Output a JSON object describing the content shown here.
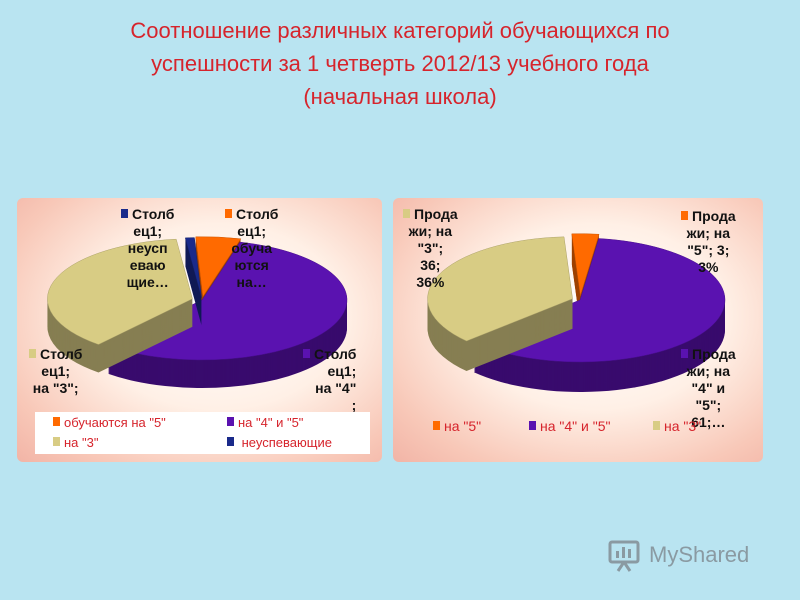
{
  "slide": {
    "title_lines": [
      "Соотношение различных категорий обучающихся по",
      "успешности за 1 четверть 2012/13 учебного года",
      "(начальная школа)"
    ],
    "brand": "MyShared"
  },
  "colors": {
    "title": "#d6242c",
    "background": "#b9e4f1",
    "excellent": "#ff6a00",
    "good": "#5a12b0",
    "satisfactory": "#d8cc84",
    "failing": "#1a2a8a"
  },
  "chart_data": [
    {
      "type": "pie",
      "title": "",
      "slices": [
        {
          "key": "excellent",
          "legend": "обучаются на \"5\"",
          "label": [
            "Столб",
            "ец1;",
            "обуча",
            "ются",
            "на…"
          ],
          "value": 5
        },
        {
          "key": "good",
          "legend": "на \"4\" и \"5\"",
          "label": [
            "Столб",
            "ец1;",
            "на \"4\"",
            ";",
            "…"
          ],
          "value": 57
        },
        {
          "key": "satisfactory",
          "legend": "на \"3\"",
          "label": [
            "Столб",
            "ец1;",
            "на \"3\";"
          ],
          "value": 37
        },
        {
          "key": "failing",
          "legend": "неуспевающие",
          "label": [
            "Столб",
            "ец1;",
            "неусп",
            "еваю",
            "щие…"
          ],
          "value": 1
        }
      ],
      "legend_position": "bottom"
    },
    {
      "type": "pie",
      "title": "",
      "slices": [
        {
          "key": "excellent",
          "legend": "на  \"5\"",
          "label": [
            "Прода",
            "жи; на",
            "\"5\"; 3;",
            "3%"
          ],
          "value": 3
        },
        {
          "key": "good",
          "legend": "на \"4\" и \"5\"",
          "label": [
            "Прода",
            "жи; на",
            "\"4\" и",
            "\"5\";",
            "61;…"
          ],
          "value": 61
        },
        {
          "key": "satisfactory",
          "legend": "на \"3\"",
          "label": [
            "Прода",
            "жи; на",
            "\"3\";",
            "36;",
            "36%"
          ],
          "value": 36
        }
      ],
      "legend_position": "bottom"
    }
  ]
}
